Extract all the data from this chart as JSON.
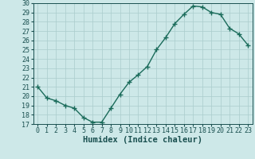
{
  "x": [
    0,
    1,
    2,
    3,
    4,
    5,
    6,
    7,
    8,
    9,
    10,
    11,
    12,
    13,
    14,
    15,
    16,
    17,
    18,
    19,
    20,
    21,
    22,
    23
  ],
  "y": [
    21.0,
    19.8,
    19.5,
    19.0,
    18.7,
    17.7,
    17.2,
    17.2,
    18.7,
    20.2,
    21.5,
    22.3,
    23.2,
    25.0,
    26.3,
    27.8,
    28.8,
    29.7,
    29.6,
    29.0,
    28.8,
    27.3,
    26.7,
    25.5
  ],
  "ylim": [
    17,
    30
  ],
  "yticks": [
    17,
    18,
    19,
    20,
    21,
    22,
    23,
    24,
    25,
    26,
    27,
    28,
    29,
    30
  ],
  "xlim": [
    -0.5,
    23.5
  ],
  "xticks": [
    0,
    1,
    2,
    3,
    4,
    5,
    6,
    7,
    8,
    9,
    10,
    11,
    12,
    13,
    14,
    15,
    16,
    17,
    18,
    19,
    20,
    21,
    22,
    23
  ],
  "xlabel": "Humidex (Indice chaleur)",
  "line_color": "#1a6b5a",
  "marker": "+",
  "marker_size": 4,
  "line_width": 1.0,
  "bg_color": "#cde8e8",
  "grid_color": "#aacccc",
  "tick_color": "#1a5050",
  "label_color": "#1a5050",
  "font_family": "monospace",
  "xlabel_fontsize": 7.5,
  "tick_fontsize": 6.0
}
